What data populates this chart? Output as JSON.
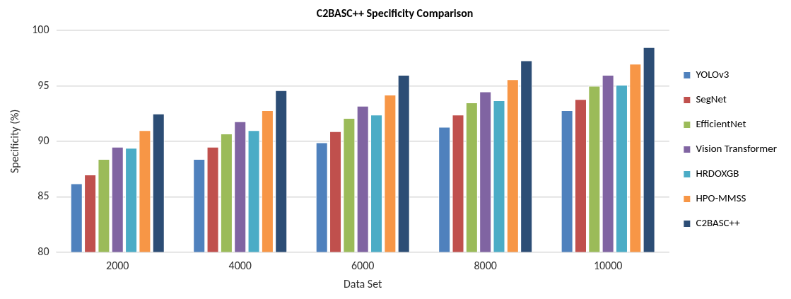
{
  "chart_data": {
    "type": "bar",
    "title": "C2BASC++ Specificity Comparison",
    "xlabel": "Data Set",
    "ylabel": "Specificity (%)",
    "categories": [
      "2000",
      "4000",
      "6000",
      "8000",
      "10000"
    ],
    "series": [
      {
        "name": "YOLOv3",
        "color": "#4f81bd",
        "values": [
          86.2,
          88.4,
          89.9,
          91.3,
          92.8
        ]
      },
      {
        "name": "SegNet",
        "color": "#c0504d",
        "values": [
          87.0,
          89.5,
          90.9,
          92.4,
          93.8
        ]
      },
      {
        "name": "EfficientNet",
        "color": "#9bbb59",
        "values": [
          88.4,
          90.7,
          92.1,
          93.5,
          95.0
        ]
      },
      {
        "name": "Vision Transformer",
        "color": "#8064a2",
        "values": [
          89.5,
          91.8,
          93.2,
          94.5,
          96.0
        ]
      },
      {
        "name": "HRDOXGB",
        "color": "#4bacc6",
        "values": [
          89.4,
          91.0,
          92.4,
          93.7,
          95.1
        ]
      },
      {
        "name": "HPO-MMSS",
        "color": "#f79646",
        "values": [
          91.0,
          92.8,
          94.2,
          95.6,
          97.0
        ]
      },
      {
        "name": "C2BASC++",
        "color": "#2c4d75",
        "values": [
          92.5,
          94.6,
          96.0,
          97.3,
          98.5
        ]
      }
    ],
    "ylim": [
      80,
      100
    ],
    "yticks": [
      80,
      85,
      90,
      95,
      100
    ],
    "grid": "y",
    "legend": "right"
  }
}
